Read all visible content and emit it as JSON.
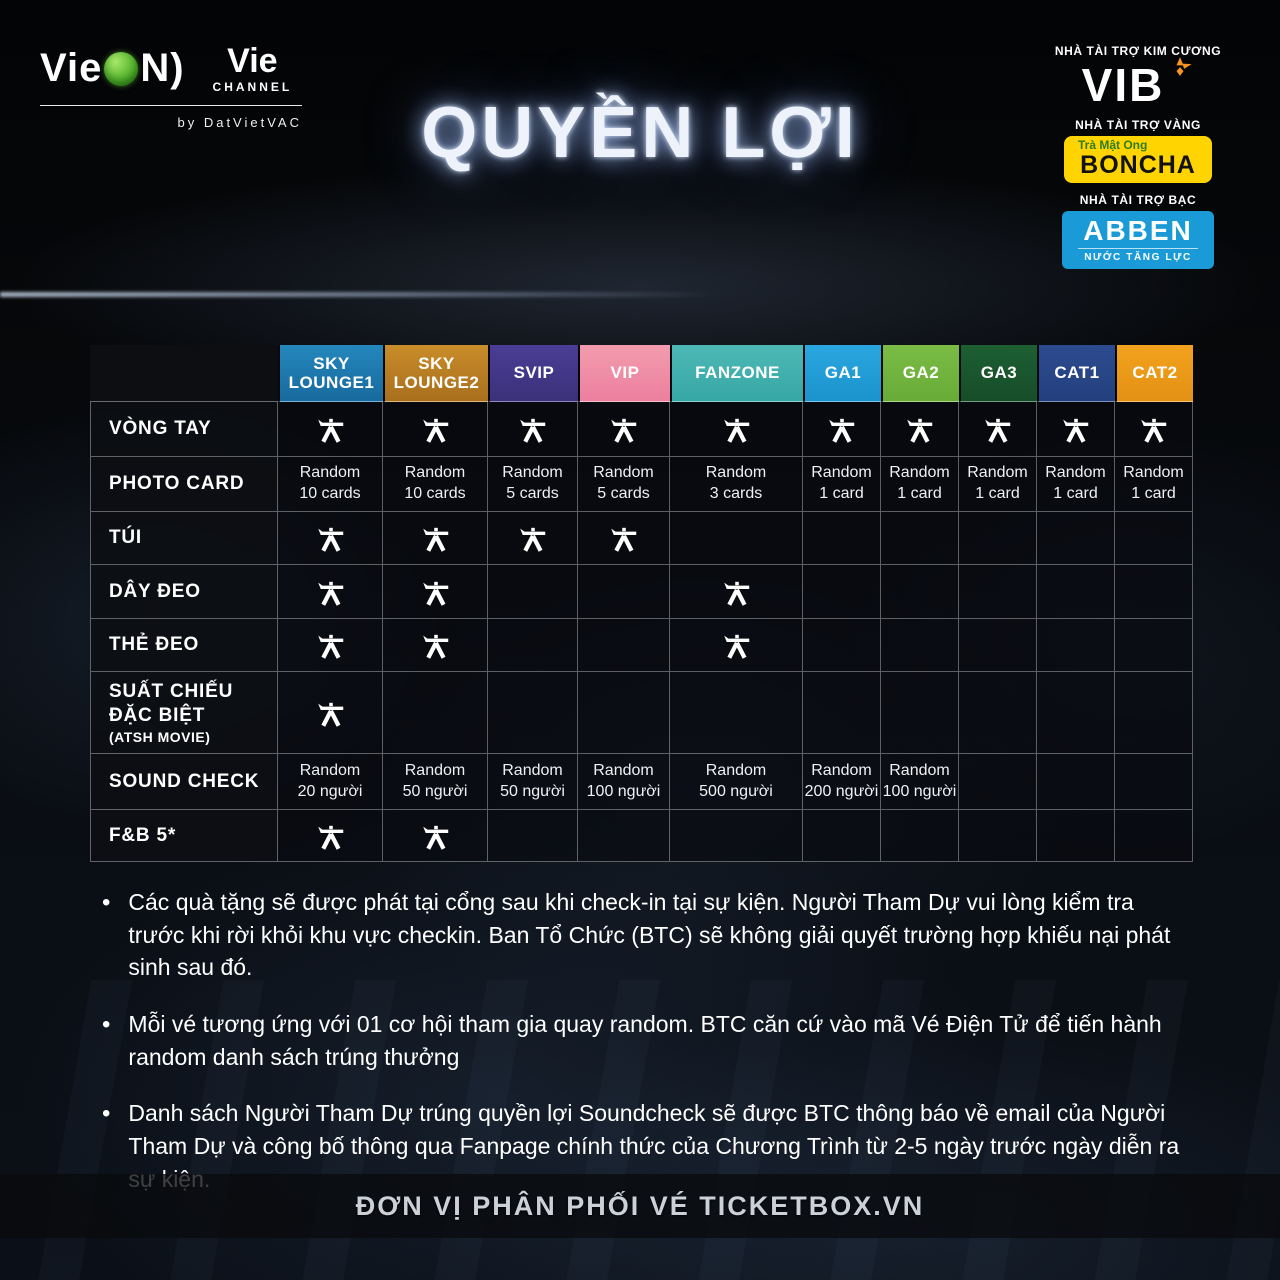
{
  "branding": {
    "vieon": {
      "part1": "Vie",
      "part2": "N)"
    },
    "vie_channel": {
      "top": "Vie",
      "bottom": "CHANNEL"
    },
    "byline": "by DatVietVAC"
  },
  "title": "QUYỀN LỢI",
  "sponsors": [
    {
      "tier": "NHÀ TÀI TRỢ KIM CƯƠNG",
      "name": "VIB",
      "accent_color": "#f6941e"
    },
    {
      "tier": "NHÀ TÀI TRỢ VÀNG",
      "name": "BONCHA",
      "tagline": "Trà Mật Ong",
      "box_color": "#ffd400"
    },
    {
      "tier": "NHÀ TÀI TRỢ BẠC",
      "name": "ABBEN",
      "tagline": "NƯỚC TĂNG LỰC",
      "box_color": "#1a9bd7"
    }
  ],
  "icons": {
    "benefit_check": "atsh-logo-check-icon"
  },
  "table": {
    "columns": [
      {
        "label": "SKY LOUNGE 1",
        "display": "SKY\nLOUNGE1",
        "c1": "#2487bc",
        "c2": "#186a9e"
      },
      {
        "label": "SKY LOUNGE 2",
        "display": "SKY\nLOUNGE2",
        "c1": "#c98d2a",
        "c2": "#a96f1d"
      },
      {
        "label": "SVIP",
        "display": "SVIP",
        "c1": "#4a3d96",
        "c2": "#3b3179"
      },
      {
        "label": "VIP",
        "display": "VIP",
        "c1": "#f29cae",
        "c2": "#ec7f9e"
      },
      {
        "label": "FANZONE",
        "display": "FANZONE",
        "c1": "#4db9b6",
        "c2": "#37a7a4"
      },
      {
        "label": "GA1",
        "display": "GA1",
        "c1": "#2aa7e0",
        "c2": "#1b93cc"
      },
      {
        "label": "GA2",
        "display": "GA2",
        "c1": "#7abc45",
        "c2": "#68ab36"
      },
      {
        "label": "GA3",
        "display": "GA3",
        "c1": "#1d5f33",
        "c2": "#164d29"
      },
      {
        "label": "CAT1",
        "display": "CAT1",
        "c1": "#2c4b8f",
        "c2": "#24407e"
      },
      {
        "label": "CAT2",
        "display": "CAT2",
        "c1": "#f3a21e",
        "c2": "#e29114"
      }
    ],
    "rows": [
      {
        "label": "VÒNG TAY",
        "cells": [
          "ICON",
          "ICON",
          "ICON",
          "ICON",
          "ICON",
          "ICON",
          "ICON",
          "ICON",
          "ICON",
          "ICON"
        ]
      },
      {
        "label": "PHOTO CARD",
        "cells": [
          "Random\n10 cards",
          "Random\n10 cards",
          "Random\n5 cards",
          "Random\n5 cards",
          "Random\n3 cards",
          "Random\n1 card",
          "Random\n1 card",
          "Random\n1 card",
          "Random\n1 card",
          "Random\n1 card"
        ]
      },
      {
        "label": "TÚI",
        "cells": [
          "ICON",
          "ICON",
          "ICON",
          "ICON",
          "",
          "",
          "",
          "",
          "",
          ""
        ]
      },
      {
        "label": "DÂY ĐEO",
        "cells": [
          "ICON",
          "ICON",
          "",
          "",
          "ICON",
          "",
          "",
          "",
          "",
          ""
        ]
      },
      {
        "label": "THẺ ĐEO",
        "cells": [
          "ICON",
          "ICON",
          "",
          "",
          "ICON",
          "",
          "",
          "",
          "",
          ""
        ]
      },
      {
        "label": "SUẤT CHIẾU ĐẶC BIỆT",
        "sub": "(ATSH MOVIE)",
        "cells": [
          "ICON",
          "",
          "",
          "",
          "",
          "",
          "",
          "",
          "",
          ""
        ]
      },
      {
        "label": "SOUND CHECK",
        "cells": [
          "Random\n20 người",
          "Random\n50 người",
          "Random\n50 người",
          "Random\n100 người",
          "Random\n500 người",
          "Random\n200 người",
          "Random\n100 người",
          "",
          "",
          ""
        ]
      },
      {
        "label": "F&B 5*",
        "cells": [
          "ICON",
          "ICON",
          "",
          "",
          "",
          "",
          "",
          "",
          "",
          ""
        ]
      }
    ]
  },
  "notes": [
    "Các quà tặng sẽ được phát tại cổng sau khi check-in tại sự kiện. Người Tham Dự vui lòng kiểm tra trước khi rời khỏi khu vực checkin. Ban Tổ Chức (BTC) sẽ không giải quyết trường hợp khiếu nại phát sinh sau đó.",
    "Mỗi vé tương ứng với 01 cơ hội tham gia quay random. BTC căn cứ vào mã Vé Điện Tử để tiến hành random danh sách trúng thưởng",
    "Danh sách Người Tham Dự trúng quyền lợi Soundcheck sẽ được BTC thông báo về email của Người Tham Dự và công bố thông qua Fanpage chính thức của Chương Trình từ 2-5 ngày trước ngày diễn ra sự kiện."
  ],
  "footer": {
    "text": "ĐƠN VỊ PHÂN PHỐI VÉ TICKETBOX.VN"
  }
}
